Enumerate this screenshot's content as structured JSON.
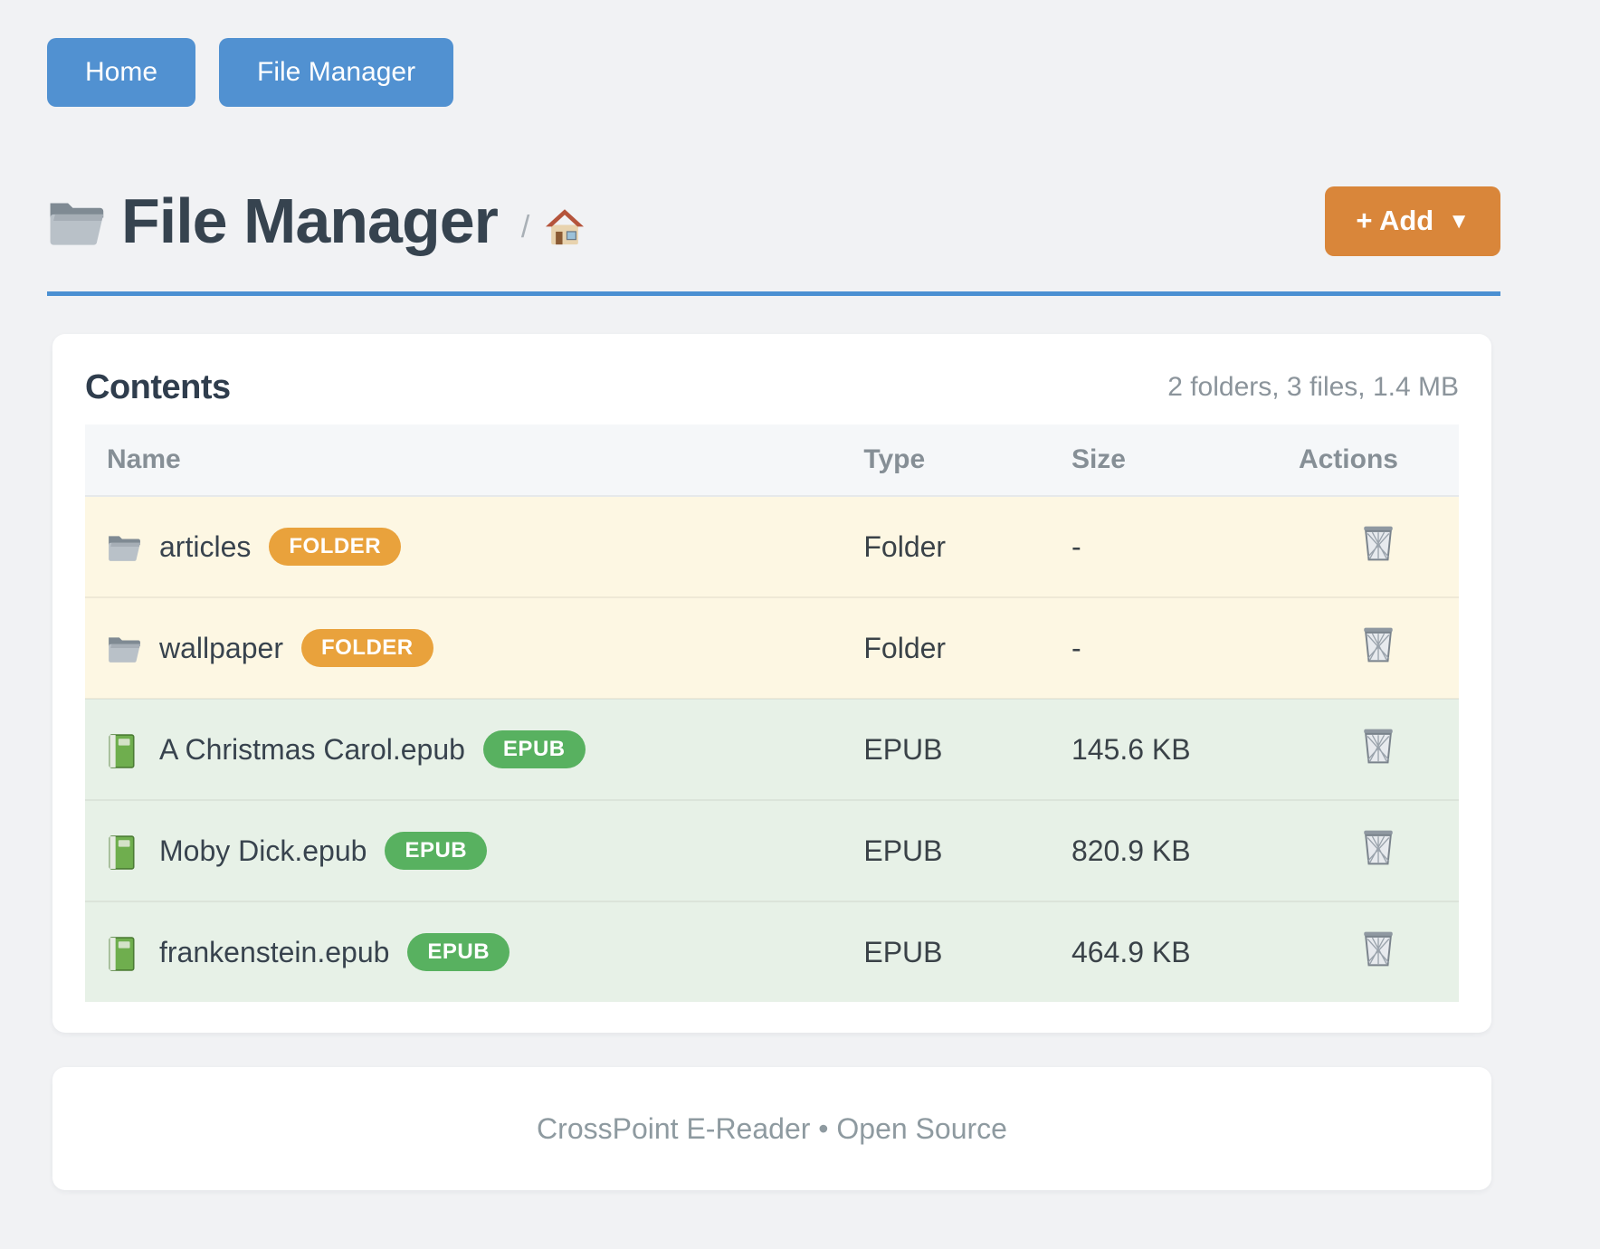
{
  "nav": {
    "buttons": [
      {
        "label": "Home"
      },
      {
        "label": "File Manager"
      }
    ]
  },
  "header": {
    "icon": "folder-icon",
    "title": "File Manager",
    "breadcrumb_separator": "/",
    "home_icon": "home-icon",
    "add_button": {
      "label": "+ Add",
      "caret": "▼"
    }
  },
  "contents": {
    "title": "Contents",
    "summary": "2 folders, 3 files, 1.4 MB",
    "columns": [
      "Name",
      "Type",
      "Size",
      "Actions"
    ],
    "rows": [
      {
        "icon": "folder-icon",
        "name": "articles",
        "badge": "FOLDER",
        "badge_type": "folder",
        "type": "Folder",
        "size": "-",
        "action_icon": "trash-icon"
      },
      {
        "icon": "folder-icon",
        "name": "wallpaper",
        "badge": "FOLDER",
        "badge_type": "folder",
        "type": "Folder",
        "size": "-",
        "action_icon": "trash-icon"
      },
      {
        "icon": "book-icon",
        "name": "A Christmas Carol.epub",
        "badge": "EPUB",
        "badge_type": "epub",
        "type": "EPUB",
        "size": "145.6 KB",
        "action_icon": "trash-icon"
      },
      {
        "icon": "book-icon",
        "name": "Moby Dick.epub",
        "badge": "EPUB",
        "badge_type": "epub",
        "type": "EPUB",
        "size": "820.9 KB",
        "action_icon": "trash-icon"
      },
      {
        "icon": "book-icon",
        "name": "frankenstein.epub",
        "badge": "EPUB",
        "badge_type": "epub",
        "type": "EPUB",
        "size": "464.9 KB",
        "action_icon": "trash-icon"
      }
    ]
  },
  "footer": {
    "text": "CrossPoint E-Reader • Open Source"
  },
  "colors": {
    "accent_blue": "#5191d1",
    "accent_orange": "#d9863a",
    "badge_folder": "#e9a23c",
    "badge_epub": "#58b160",
    "row_folder_bg": "#fdf7e3",
    "row_epub_bg": "#e7f1e7",
    "divider_blue": "#4b90d2"
  }
}
